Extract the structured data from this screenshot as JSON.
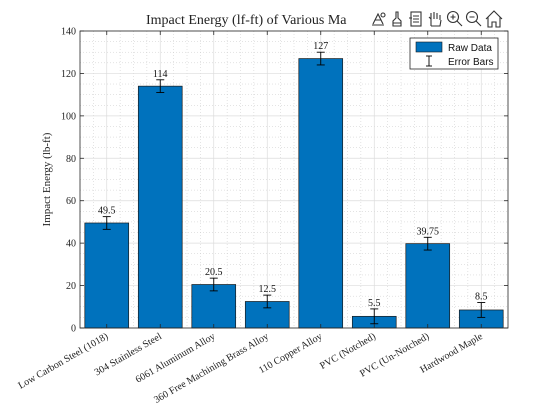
{
  "chart_data": {
    "type": "bar",
    "title": "Impact Energy (lf-ft) of Various Ma",
    "ylabel": "Impact Energy (lb-ft)",
    "xlabel": "",
    "ylim": [
      0,
      140
    ],
    "yticks": [
      0,
      20,
      40,
      60,
      80,
      100,
      120,
      140
    ],
    "grid": true,
    "minor_grid": true,
    "legend_position": "top-right",
    "categories": [
      "Low Carbon Steel (1018)",
      "304 Stainless Steel",
      "6061 Aluminum Alloy",
      "360 Free Machining Brass Alloy",
      "110 Copper Alloy",
      "PVC (Notched)",
      "PVC (Un-Notched)",
      "Hardwood Maple"
    ],
    "series": [
      {
        "name": "Raw Data",
        "color": "#0072BD",
        "values": [
          49.5,
          114,
          20.5,
          12.5,
          127,
          5.5,
          39.75,
          8.5
        ],
        "data_labels": [
          "49.5",
          "114",
          "20.5",
          "12.5",
          "127",
          "5.5",
          "39.75",
          "8.5"
        ]
      }
    ],
    "error_bars": {
      "name": "Error Bars",
      "lower": [
        3,
        3,
        3,
        3,
        3,
        3.5,
        3,
        3.5
      ],
      "upper": [
        3,
        3,
        3,
        3,
        3,
        3.5,
        3,
        3.5
      ]
    }
  },
  "toolbar": {
    "icons": [
      "data-tips-icon",
      "brush-icon",
      "link-icon",
      "pan-hand-icon",
      "zoom-in-icon",
      "zoom-out-icon",
      "home-icon"
    ]
  }
}
